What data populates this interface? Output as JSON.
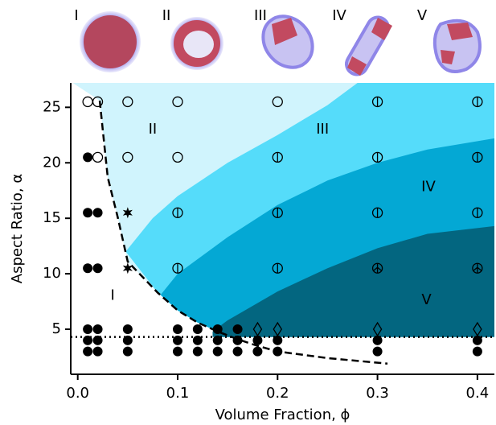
{
  "chart_data": {
    "type": "scatter",
    "x_label": "Volume Fraction, ϕ",
    "y_label": "Aspect Ratio, α",
    "xlim": [
      -0.007,
      0.417
    ],
    "ylim": [
      0.94,
      27.2
    ],
    "xticks": [
      {
        "value": 0,
        "label": "0.0"
      },
      0.1,
      0.2,
      0.3,
      0.4
    ],
    "yticks": [
      5,
      10,
      15,
      20,
      25
    ],
    "image_labels": [
      "I",
      "II",
      "III",
      "IV",
      "V"
    ],
    "annotations": [
      {
        "text": "I",
        "x": 0.035,
        "y": 8.0
      },
      {
        "text": "II",
        "x": 0.075,
        "y": 23.0
      },
      {
        "text": "III",
        "x": 0.245,
        "y": 23.0
      },
      {
        "text": "IV",
        "x": 0.351,
        "y": 17.8
      },
      {
        "text": "V",
        "x": 0.349,
        "y": 7.6
      }
    ],
    "regions": [
      {
        "color": "#d0f4fd",
        "x": [
          -0.005,
          0.022,
          0.03,
          0.04,
          0.05,
          0.08,
          0.1,
          0.12,
          0.14,
          0.14,
          0.417,
          0.417
        ],
        "y": [
          27.2,
          25.6,
          18.7,
          15.1,
          11.1,
          8.3,
          6.7,
          5.6,
          4.8,
          4.3,
          4.3,
          27.2
        ]
      },
      {
        "color": "#55dcfa",
        "x": [
          0.048,
          0.075,
          0.1,
          0.15,
          0.2,
          0.25,
          0.28,
          0.417,
          0.417,
          0.14,
          0.14,
          0.12,
          0.1,
          0.08
        ],
        "y": [
          12,
          15,
          17,
          20,
          22.5,
          25.2,
          27.2,
          27.2,
          4.3,
          4.3,
          4.8,
          5.6,
          6.7,
          8.3
        ]
      },
      {
        "color": "#04a8d4",
        "x": [
          0.083,
          0.1,
          0.15,
          0.2,
          0.25,
          0.3,
          0.35,
          0.417,
          0.417,
          0.14,
          0.14,
          0.12,
          0.1
        ],
        "y": [
          8.1,
          10,
          13.3,
          16.2,
          18.4,
          20,
          21.2,
          22.2,
          4.3,
          4.3,
          4.8,
          5.6,
          6.7
        ]
      },
      {
        "color": "#036680",
        "x": [
          0.135,
          0.15,
          0.2,
          0.25,
          0.3,
          0.35,
          0.417,
          0.417,
          0.135
        ],
        "y": [
          4.8,
          5.8,
          8.4,
          10.5,
          12.3,
          13.6,
          14.3,
          4.3,
          4.3
        ]
      }
    ],
    "dashed_curve": {
      "x": [
        0.022,
        0.03,
        0.04,
        0.05,
        0.08,
        0.1,
        0.12,
        0.14,
        0.16,
        0.18,
        0.2,
        0.25,
        0.31
      ],
      "y": [
        25.6,
        18.7,
        15.1,
        11.1,
        8.3,
        6.7,
        5.6,
        4.8,
        4.1,
        3.5,
        3.0,
        2.4,
        1.9
      ]
    },
    "dotted_line": 4.3,
    "series": [
      {
        "marker": "filled-circle",
        "x": [
          0.01,
          0.02,
          0.05,
          0.1,
          0.12,
          0.14,
          0.16,
          0.01,
          0.02,
          0.05,
          0.1,
          0.12,
          0.14,
          0.16,
          0.01,
          0.02,
          0.05,
          0.1,
          0.12,
          0.14,
          0.16,
          0.18,
          0.2,
          0.3,
          0.4,
          0.18,
          0.2,
          0.3,
          0.4,
          0.01,
          0.02,
          0.01,
          0.02,
          0.01
        ],
        "values": [
          5,
          5,
          5,
          5,
          5,
          5,
          5,
          4,
          4,
          4,
          4,
          4,
          4,
          4,
          3,
          3,
          3,
          3,
          3,
          3,
          3,
          4,
          4,
          4,
          4,
          3,
          3,
          3,
          3,
          10.5,
          10.5,
          15.5,
          15.5,
          20.5
        ]
      },
      {
        "marker": "star",
        "x": [
          0.05,
          0.05
        ],
        "values": [
          10.5,
          15.5
        ]
      },
      {
        "marker": "open-circle",
        "x": [
          0.01,
          0.02,
          0.02,
          0.05,
          0.05,
          0.1,
          0.1,
          0.2
        ],
        "values": [
          25.5,
          25.5,
          20.5,
          25.5,
          20.5,
          25.5,
          20.5,
          25.5
        ]
      },
      {
        "marker": "barred-circle",
        "x": [
          0.1,
          0.1,
          0.2,
          0.2,
          0.2,
          0.3,
          0.3,
          0.3,
          0.4,
          0.4,
          0.4
        ],
        "values": [
          15.5,
          10.5,
          20.5,
          15.5,
          10.5,
          25.5,
          20.5,
          15.5,
          25.5,
          20.5,
          15.5
        ]
      },
      {
        "marker": "crossed-circle",
        "x": [
          0.3,
          0.4
        ],
        "values": [
          10.5,
          10.5
        ]
      },
      {
        "marker": "diamond",
        "x": [
          0.18,
          0.2,
          0.3,
          0.4
        ],
        "values": [
          5,
          5,
          5,
          5
        ]
      }
    ]
  }
}
